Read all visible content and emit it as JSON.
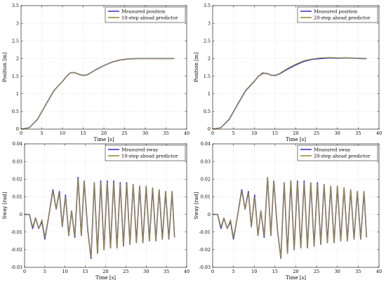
{
  "chart_data": [
    {
      "type": "line",
      "xlabel": "Time [s]",
      "ylabel": "Position [m]",
      "xlim": [
        0,
        40
      ],
      "ylim": [
        0,
        3.5
      ],
      "xticks": [
        0,
        5,
        10,
        15,
        20,
        25,
        30,
        35,
        40
      ],
      "yticks": [
        0,
        0.5,
        1,
        1.5,
        2,
        2.5,
        3,
        3.5
      ],
      "tick_labels_x": [
        "0",
        "5",
        "10",
        "15",
        "20",
        "25",
        "30",
        "35",
        "40"
      ],
      "tick_labels_y": [
        "0",
        "0.5",
        "1",
        "1.5",
        "2",
        "2.5",
        "3",
        "3.5"
      ],
      "grid": true,
      "legend_position": "top-right",
      "series": [
        {
          "name": "Measured position",
          "color": "#3c3ccc",
          "x": [
            0,
            2,
            4,
            6,
            8,
            10,
            11,
            12,
            13,
            14,
            15,
            16,
            18,
            20,
            22,
            24,
            26,
            28,
            30,
            32,
            34,
            36,
            37
          ],
          "y": [
            0,
            0.04,
            0.28,
            0.7,
            1.1,
            1.35,
            1.5,
            1.6,
            1.6,
            1.55,
            1.52,
            1.54,
            1.68,
            1.8,
            1.9,
            1.96,
            1.99,
            2.0,
            2.0,
            2.0,
            2.0,
            2.0,
            2.0
          ]
        },
        {
          "name": "10-step ahead predictor",
          "color": "#9a8a3a",
          "x": [
            0,
            2,
            4,
            6,
            8,
            10,
            11,
            12,
            13,
            14,
            15,
            16,
            18,
            20,
            22,
            24,
            26,
            28,
            30,
            32,
            34,
            36,
            37
          ],
          "y": [
            0,
            0.04,
            0.28,
            0.7,
            1.1,
            1.35,
            1.5,
            1.6,
            1.6,
            1.55,
            1.52,
            1.54,
            1.68,
            1.8,
            1.9,
            1.96,
            1.99,
            2.0,
            2.0,
            2.0,
            2.0,
            2.0,
            2.0
          ]
        }
      ]
    },
    {
      "type": "line",
      "xlabel": "Time [s]",
      "ylabel": "Position [m]",
      "xlim": [
        0,
        40
      ],
      "ylim": [
        0,
        3.5
      ],
      "xticks": [
        0,
        5,
        10,
        15,
        20,
        25,
        30,
        35,
        40
      ],
      "yticks": [
        0,
        0.5,
        1,
        1.5,
        2,
        2.5,
        3,
        3.5
      ],
      "tick_labels_x": [
        "0",
        "5",
        "10",
        "15",
        "20",
        "25",
        "30",
        "35",
        "40"
      ],
      "tick_labels_y": [
        "0",
        "0.5",
        "1",
        "1.5",
        "2",
        "2.5",
        "3",
        "3.5"
      ],
      "grid": true,
      "legend_position": "top-right",
      "series": [
        {
          "name": "Measured position",
          "color": "#3c3ccc",
          "x": [
            0,
            2,
            4,
            6,
            8,
            10,
            11,
            12,
            13,
            14,
            15,
            16,
            18,
            20,
            22,
            24,
            26,
            28,
            30,
            32,
            34,
            36,
            37
          ],
          "y": [
            0,
            0.04,
            0.28,
            0.7,
            1.1,
            1.35,
            1.5,
            1.58,
            1.58,
            1.53,
            1.52,
            1.56,
            1.7,
            1.82,
            1.92,
            1.98,
            2.0,
            2.02,
            2.01,
            2.02,
            2.01,
            2.0,
            2.0
          ]
        },
        {
          "name": "20-step ahead predictor",
          "color": "#9a8a3a",
          "x": [
            0,
            2,
            4,
            6,
            8,
            10,
            11,
            12,
            13,
            14,
            15,
            16,
            18,
            20,
            22,
            24,
            26,
            28,
            30,
            32,
            34,
            36,
            37
          ],
          "y": [
            0,
            0.04,
            0.27,
            0.69,
            1.09,
            1.34,
            1.5,
            1.6,
            1.57,
            1.53,
            1.53,
            1.57,
            1.72,
            1.84,
            1.94,
            1.99,
            2.02,
            2.03,
            2.02,
            2.02,
            2.01,
            2.01,
            2.0
          ]
        }
      ]
    },
    {
      "type": "line",
      "xlabel": "Time [s]",
      "ylabel": "Sway [rad]",
      "xlim": [
        0,
        40
      ],
      "ylim": [
        -0.03,
        0.04
      ],
      "xticks": [
        0,
        5,
        10,
        15,
        20,
        25,
        30,
        35,
        40
      ],
      "yticks": [
        -0.03,
        -0.02,
        -0.01,
        0,
        0.01,
        0.02,
        0.03,
        0.04
      ],
      "tick_labels_x": [
        "0",
        "5",
        "10",
        "15",
        "20",
        "25",
        "30",
        "35",
        "40"
      ],
      "tick_labels_y": [
        "-0.03",
        "-0.02",
        "-0.01",
        "0",
        "0.01",
        "0.02",
        "0.03",
        "0.04"
      ],
      "grid": true,
      "legend_position": "top-right",
      "series": [
        {
          "name": "Measured sway",
          "color": "#3c3ccc",
          "x": [
            0,
            1.2,
            2,
            2.7,
            3.5,
            4.3,
            5,
            5.9,
            7,
            7.8,
            8.6,
            9.3,
            10.1,
            10.9,
            11.6,
            12.4,
            13.2,
            14,
            14.7,
            15.6,
            16.4,
            17.2,
            18,
            18.8,
            19.6,
            20.4,
            21.2,
            22,
            22.8,
            23.6,
            24.4,
            25.2,
            26,
            26.8,
            27.6,
            28.4,
            29.2,
            30,
            30.8,
            31.6,
            32.4,
            33.2,
            34,
            34.8,
            35.6,
            36.4,
            37
          ],
          "y": [
            0,
            0,
            -0.008,
            -0.002,
            -0.008,
            -0.004,
            -0.014,
            -0.002,
            0.014,
            0.003,
            0.013,
            -0.007,
            0.011,
            -0.012,
            0.002,
            -0.013,
            0.021,
            -0.012,
            0.019,
            -0.009,
            -0.025,
            0.018,
            -0.022,
            0.019,
            -0.02,
            0.019,
            -0.019,
            0.019,
            -0.019,
            0.018,
            -0.018,
            0.018,
            -0.017,
            0.017,
            -0.016,
            0.016,
            -0.016,
            0.016,
            -0.015,
            0.015,
            -0.015,
            0.014,
            -0.014,
            0.013,
            -0.014,
            0.013,
            -0.013
          ]
        },
        {
          "name": "10-step ahead predictor",
          "color": "#9a8a3a",
          "x": [
            0,
            1.2,
            2,
            2.7,
            3.5,
            4.3,
            5,
            5.9,
            7,
            7.8,
            8.6,
            9.3,
            10.1,
            10.9,
            11.6,
            12.4,
            13.2,
            14,
            14.7,
            15.6,
            16.4,
            17.2,
            18,
            18.8,
            19.6,
            20.4,
            21.2,
            22,
            22.8,
            23.6,
            24.4,
            25.2,
            26,
            26.8,
            27.6,
            28.4,
            29.2,
            30,
            30.8,
            31.6,
            32.4,
            33.2,
            34,
            34.8,
            35.6,
            36.4,
            37
          ],
          "y": [
            0,
            0,
            -0.007,
            -0.002,
            -0.008,
            -0.003,
            -0.013,
            -0.002,
            0.013,
            0.003,
            0.012,
            -0.007,
            0.01,
            -0.012,
            0.002,
            -0.012,
            0.02,
            -0.012,
            0.019,
            -0.009,
            -0.024,
            0.018,
            -0.022,
            0.018,
            -0.02,
            0.018,
            -0.019,
            0.018,
            -0.019,
            0.017,
            -0.018,
            0.017,
            -0.017,
            0.017,
            -0.016,
            0.016,
            -0.016,
            0.016,
            -0.015,
            0.015,
            -0.015,
            0.014,
            -0.014,
            0.013,
            -0.014,
            0.013,
            -0.013
          ]
        }
      ]
    },
    {
      "type": "line",
      "xlabel": "Time [s]",
      "ylabel": "Sway [rad]",
      "xlim": [
        0,
        40
      ],
      "ylim": [
        -0.03,
        0.04
      ],
      "xticks": [
        0,
        5,
        10,
        15,
        20,
        25,
        30,
        35,
        40
      ],
      "yticks": [
        -0.03,
        -0.02,
        -0.01,
        0,
        0.01,
        0.02,
        0.03,
        0.04
      ],
      "tick_labels_x": [
        "0",
        "5",
        "10",
        "15",
        "20",
        "25",
        "30",
        "35",
        "40"
      ],
      "tick_labels_y": [
        "-0.03",
        "-0.02",
        "-0.01",
        "0",
        "0.01",
        "0.02",
        "0.03",
        "0.04"
      ],
      "grid": true,
      "legend_position": "top-right",
      "series": [
        {
          "name": "Measured sway",
          "color": "#3c3ccc",
          "x": [
            0,
            1.2,
            2,
            2.7,
            3.5,
            4.3,
            5,
            5.9,
            7,
            7.8,
            8.6,
            9.3,
            10.1,
            10.9,
            11.6,
            12.4,
            13.2,
            14,
            14.7,
            15.6,
            16.4,
            17.2,
            18,
            18.8,
            19.6,
            20.4,
            21.2,
            22,
            22.8,
            23.6,
            24.4,
            25.2,
            26,
            26.8,
            27.6,
            28.4,
            29.2,
            30,
            30.8,
            31.6,
            32.4,
            33.2,
            34,
            34.8,
            35.6,
            36.4,
            37
          ],
          "y": [
            0,
            0,
            -0.008,
            -0.002,
            -0.008,
            -0.004,
            -0.014,
            -0.002,
            0.014,
            0.003,
            0.013,
            -0.007,
            0.011,
            -0.012,
            0.002,
            -0.013,
            0.021,
            -0.012,
            0.019,
            -0.009,
            -0.025,
            0.018,
            -0.022,
            0.019,
            -0.02,
            0.019,
            -0.019,
            0.019,
            -0.019,
            0.018,
            -0.018,
            0.018,
            -0.017,
            0.017,
            -0.016,
            0.016,
            -0.016,
            0.016,
            -0.015,
            0.015,
            -0.015,
            0.014,
            -0.014,
            0.013,
            -0.014,
            0.013,
            -0.013
          ]
        },
        {
          "name": "20-step ahead predictor",
          "color": "#9a8a3a",
          "x": [
            0,
            1.2,
            2,
            2.7,
            3.5,
            4.3,
            5,
            5.9,
            7,
            7.8,
            8.6,
            9.3,
            10.1,
            10.9,
            11.6,
            12.4,
            13.2,
            14,
            14.7,
            15.6,
            16.4,
            17.2,
            18,
            18.8,
            19.6,
            20.4,
            21.2,
            22,
            22.8,
            23.6,
            24.4,
            25.2,
            26,
            26.8,
            27.6,
            28.4,
            29.2,
            30,
            30.8,
            31.6,
            32.4,
            33.2,
            34,
            34.8,
            35.6,
            36.4,
            37
          ],
          "y": [
            0,
            0,
            -0.007,
            -0.002,
            -0.008,
            -0.003,
            -0.013,
            -0.002,
            0.013,
            0.003,
            0.012,
            -0.007,
            0.01,
            -0.012,
            0.002,
            -0.012,
            0.021,
            -0.012,
            0.019,
            -0.009,
            -0.025,
            0.018,
            -0.022,
            0.019,
            -0.02,
            0.018,
            -0.019,
            0.018,
            -0.019,
            0.018,
            -0.018,
            0.017,
            -0.017,
            0.017,
            -0.016,
            0.016,
            -0.016,
            0.016,
            -0.015,
            0.015,
            -0.015,
            0.014,
            -0.014,
            0.013,
            -0.014,
            0.013,
            -0.013
          ]
        }
      ]
    }
  ]
}
